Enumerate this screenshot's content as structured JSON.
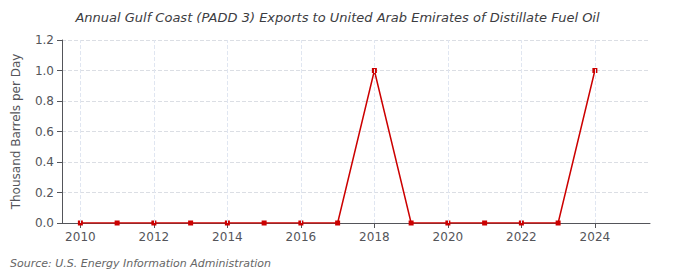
{
  "chart_data": {
    "type": "line",
    "title": "Annual Gulf Coast (PADD 3) Exports to United Arab Emirates of Distillate Fuel Oil",
    "ylabel": "Thousand Barrels per Day",
    "annotation": "Source: U.S. Energy Information Administration",
    "x": [
      2010,
      2011,
      2012,
      2013,
      2014,
      2015,
      2016,
      2017,
      2018,
      2019,
      2020,
      2021,
      2022,
      2023,
      2024
    ],
    "values": [
      0.0,
      0.0,
      0.0,
      0.0,
      0.0,
      0.0,
      0.0,
      0.0,
      1.0,
      0.0,
      0.0,
      0.0,
      0.0,
      0.0,
      1.0
    ],
    "color": "#cc0000",
    "marker": "square",
    "line_style": "solid",
    "xlim": [
      2009.5,
      2025.5
    ],
    "xticks": [
      2010,
      2012,
      2014,
      2016,
      2018,
      2020,
      2022,
      2024
    ],
    "ylim": [
      0.0,
      1.2
    ],
    "yticks": [
      {
        "value": 0,
        "label": "0.0"
      },
      0.2,
      0.4,
      0.6,
      0.8,
      {
        "value": 1,
        "label": "1.0"
      },
      1.2
    ],
    "grid": true
  }
}
